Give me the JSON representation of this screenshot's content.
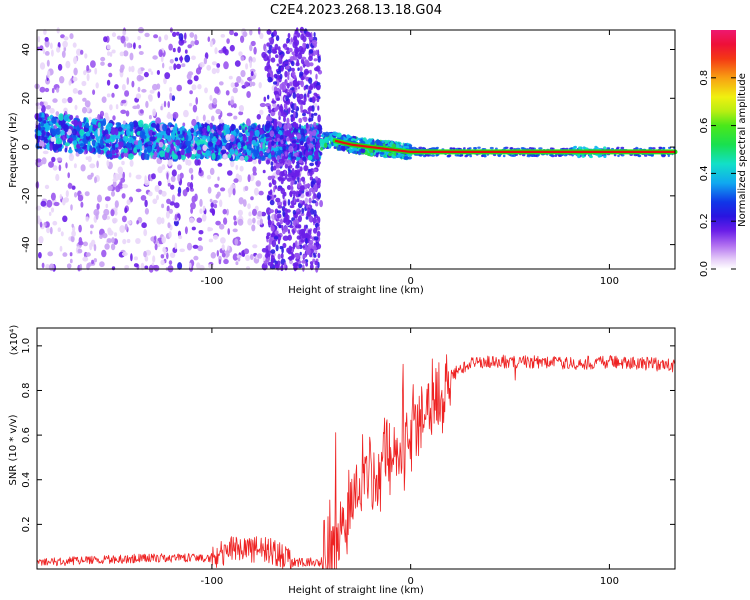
{
  "title": "C2E4.2023.268.13.18.G04",
  "colors": {
    "snr_line": "#ee2222",
    "ridge_red": "#e21010",
    "ridge_green": "#22e01a",
    "ridge_yellow": "#e8f000"
  },
  "chart_data": [
    {
      "type": "heatmap",
      "title": "C2E4.2023.268.13.18.G04",
      "xlabel": "Height of straight line (km)",
      "ylabel": "Frequency (Hz)",
      "xlim": [
        -188,
        133
      ],
      "ylim": [
        -50,
        48
      ],
      "xticks": [
        -100,
        0,
        100
      ],
      "yticks": [
        -40,
        -20,
        0,
        20,
        40
      ],
      "grid": false,
      "colorbar": {
        "label": "Normalized spectral amplitude",
        "range": [
          0,
          1
        ],
        "ticks": [
          0.0,
          0.2,
          0.4,
          0.6,
          0.8
        ],
        "colormap": "rainbow"
      },
      "ridge": [
        {
          "x": -188,
          "freq": 7
        },
        {
          "x": -150,
          "freq": 3
        },
        {
          "x": -100,
          "freq": 2
        },
        {
          "x": -60,
          "freq": 2
        },
        {
          "x": -45,
          "freq": 2
        },
        {
          "x": -40,
          "freq": 3
        },
        {
          "x": -30,
          "freq": 1
        },
        {
          "x": -20,
          "freq": 0
        },
        {
          "x": 0,
          "freq": -2
        },
        {
          "x": 50,
          "freq": -2
        },
        {
          "x": 100,
          "freq": -2
        },
        {
          "x": 133,
          "freq": -2
        }
      ]
    },
    {
      "type": "line",
      "xlabel": "Height of straight line (km)",
      "ylabel": "SNR (10 * v/v)",
      "y_multiplier": "(x10⁴)",
      "xlim": [
        -188,
        133
      ],
      "ylim": [
        0,
        1.08
      ],
      "xticks": [
        -100,
        0,
        100
      ],
      "yticks": [
        0.2,
        0.4,
        0.6,
        0.8,
        1.0
      ],
      "grid": false,
      "series": [
        {
          "x": [
            -188,
            -160,
            -130,
            -100,
            -90,
            -80,
            -70,
            -60,
            -50,
            -45,
            -40,
            -36,
            -32,
            -28,
            -24,
            -20,
            -15,
            -10,
            -5,
            0,
            5,
            10,
            15,
            20,
            25,
            30,
            40,
            60,
            80,
            100,
            120,
            133
          ],
          "values": [
            0.03,
            0.04,
            0.05,
            0.05,
            0.09,
            0.09,
            0.08,
            0.03,
            0.03,
            0.03,
            0.06,
            0.15,
            0.25,
            0.33,
            0.4,
            0.42,
            0.46,
            0.5,
            0.56,
            0.6,
            0.66,
            0.72,
            0.8,
            0.86,
            0.9,
            0.92,
            0.93,
            0.93,
            0.92,
            0.93,
            0.92,
            0.91
          ]
        }
      ]
    }
  ]
}
